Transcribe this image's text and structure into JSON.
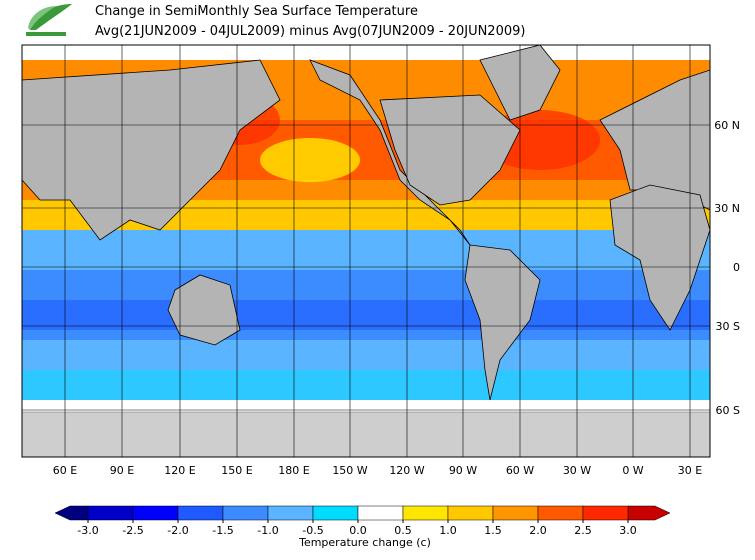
{
  "title": "Change in SemiMonthly Sea Surface Temperature",
  "subtitle": "Avg(21JUN2009 - 04JUL2009) minus Avg(07JUN2009 - 20JUN2009)",
  "lat_labels": [
    "60 N",
    "30 N",
    "0",
    "30 S",
    "60 S"
  ],
  "lon_labels": [
    "60 E",
    "90 E",
    "120 E",
    "150 E",
    "180 E",
    "150 W",
    "120 W",
    "90 W",
    "60 W",
    "30 W",
    "0 W",
    "30 E"
  ],
  "colorbar": {
    "label": "Temperature change  (c)",
    "ticks": [
      {
        "value": -3,
        "label": "-3.0"
      },
      {
        "value": -2.5,
        "label": "-2.5"
      },
      {
        "value": -2,
        "label": "-2.0"
      },
      {
        "value": -1.5,
        "label": "-1.5"
      },
      {
        "value": -1,
        "label": "-1.0"
      },
      {
        "value": -0.5,
        "label": "-0.5"
      },
      {
        "value": 0,
        "label": "0.0"
      },
      {
        "value": 0.5,
        "label": "0.5"
      },
      {
        "value": 1,
        "label": "1.0"
      },
      {
        "value": 1.5,
        "label": "1.5"
      },
      {
        "value": 2,
        "label": "2.0"
      },
      {
        "value": 2.5,
        "label": "2.5"
      },
      {
        "value": 3,
        "label": "3.0"
      }
    ],
    "colors": [
      "#0000c8",
      "#0000ff",
      "#1e5aff",
      "#3c8cff",
      "#5ab4ff",
      "#00dcff",
      "#ffffff",
      "#ffe600",
      "#ffc800",
      "#ff9600",
      "#ff5a00",
      "#ff2800"
    ],
    "under_color": "#000080",
    "over_color": "#c80000"
  }
}
